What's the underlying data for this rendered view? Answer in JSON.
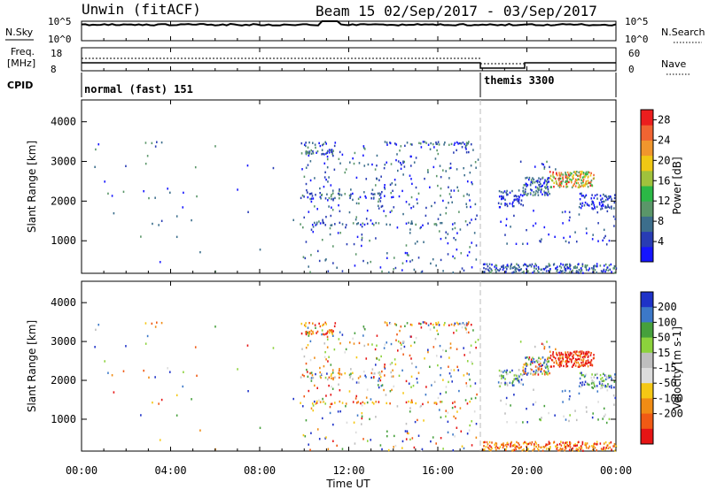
{
  "header": {
    "radar_title": "Unwin (fitACF)",
    "beam_date": "Beam 15  02/Sep/2017 - 03/Sep/2017"
  },
  "aux": {
    "nsky_label": "N.Sky",
    "nsearch_label": "N.Search",
    "freq_label_line1": "Freq.",
    "freq_label_line2": "[MHz]",
    "nave_label": "Nave",
    "cpid_label": "CPID",
    "noise_ticks": [
      "10^5",
      "10^0"
    ],
    "freq_ticks": [
      "18",
      "8"
    ],
    "nave_ticks": [
      "60",
      "0"
    ]
  },
  "modes": [
    {
      "label": "normal (fast) 151",
      "start_hour": 0
    },
    {
      "label": "themis 3300",
      "start_hour": 18
    }
  ],
  "colors": {
    "power_scale": [
      "#1515ff",
      "#283cb4",
      "#3c6e8c",
      "#5a9669",
      "#2bb846",
      "#a0c23c",
      "#f0c814",
      "#f0962d",
      "#f06432",
      "#eb1e1e"
    ],
    "velocity_scale": [
      "#1e32c8",
      "#3c78c8",
      "#46a03c",
      "#8cd23c",
      "#bebebe",
      "#dcdcdc",
      "#f5c814",
      "#f08c14",
      "#f05a14",
      "#e61414"
    ]
  },
  "chart_data": [
    {
      "type": "heatmap",
      "panel": "power",
      "ylabel": "Slant Range [km]",
      "yticks": [
        1000,
        2000,
        3000,
        4000
      ],
      "ylim": [
        180,
        4550
      ],
      "xlim": [
        0,
        24
      ],
      "colorbar_label": "Power [dB]",
      "colorbar_ticks": [
        4,
        8,
        12,
        16,
        20,
        24,
        28
      ],
      "colorbar_range": [
        0,
        30
      ]
    },
    {
      "type": "heatmap",
      "panel": "velocity",
      "ylabel": "Slant Range [km]",
      "yticks": [
        1000,
        2000,
        3000,
        4000
      ],
      "ylim": [
        180,
        4550
      ],
      "xlim": [
        0,
        24
      ],
      "colorbar_label": "Velocity [m s-1]",
      "colorbar_ticks": [
        200,
        100,
        50,
        15,
        -15,
        -50,
        -100,
        -200
      ]
    }
  ],
  "time_axis": {
    "tick_labels": [
      "00:00",
      "04:00",
      "08:00",
      "12:00",
      "16:00",
      "20:00",
      "00:00"
    ],
    "tick_hours": [
      0,
      4,
      8,
      12,
      16,
      20,
      24
    ],
    "xlabel": "Time UT"
  },
  "scatter_bands": [
    {
      "t0": 3.0,
      "t1": 3.6,
      "r0": 3350,
      "r1": 3520,
      "density": 0.18,
      "vel": "warm"
    },
    {
      "t0": 3.0,
      "t1": 3.6,
      "r0": 1380,
      "r1": 1520,
      "density": 0.18,
      "vel": "warm"
    },
    {
      "t0": 9.8,
      "t1": 11.4,
      "r0": 3380,
      "r1": 3500,
      "density": 0.3,
      "vel": "warm"
    },
    {
      "t0": 9.8,
      "t1": 11.4,
      "r0": 3180,
      "r1": 3300,
      "density": 0.3,
      "vel": "warm"
    },
    {
      "t0": 9.8,
      "t1": 13.5,
      "r0": 2050,
      "r1": 2200,
      "density": 0.25,
      "vel": "mixed"
    },
    {
      "t0": 9.8,
      "t1": 17.6,
      "r0": 1400,
      "r1": 1460,
      "density": 0.3,
      "vel": "warm"
    },
    {
      "t0": 13.5,
      "t1": 17.6,
      "r0": 3420,
      "r1": 3500,
      "density": 0.25,
      "vel": "mixed"
    },
    {
      "t0": 9.8,
      "t1": 17.8,
      "r0": 200,
      "r1": 1600,
      "density": 0.03,
      "vel": "mixed"
    },
    {
      "t0": 9.8,
      "t1": 17.8,
      "r0": 1600,
      "r1": 3400,
      "density": 0.04,
      "vel": "mixed"
    },
    {
      "t0": 18.0,
      "t1": 24.0,
      "r0": 190,
      "r1": 420,
      "density": 0.45,
      "vel": "warm"
    },
    {
      "t0": 18.7,
      "t1": 19.8,
      "r0": 1850,
      "r1": 2300,
      "density": 0.35,
      "vel": "cool"
    },
    {
      "t0": 19.8,
      "t1": 21.0,
      "r0": 2150,
      "r1": 2600,
      "density": 0.4,
      "vel": "mixed"
    },
    {
      "t0": 21.0,
      "t1": 23.0,
      "r0": 2350,
      "r1": 2750,
      "density": 0.55,
      "vel": "hot"
    },
    {
      "t0": 22.3,
      "t1": 24.0,
      "r0": 1800,
      "r1": 2200,
      "density": 0.35,
      "vel": "cool"
    },
    {
      "t0": 18.5,
      "t1": 24.0,
      "r0": 900,
      "r1": 1850,
      "density": 0.03,
      "vel": "cool"
    },
    {
      "t0": 19.5,
      "t1": 21.5,
      "r0": 2800,
      "r1": 3100,
      "density": 0.05,
      "vel": "mixed"
    },
    {
      "t0": 0.2,
      "t1": 9.5,
      "r0": 200,
      "r1": 3500,
      "density": 0.003,
      "vel": "mixed"
    }
  ]
}
